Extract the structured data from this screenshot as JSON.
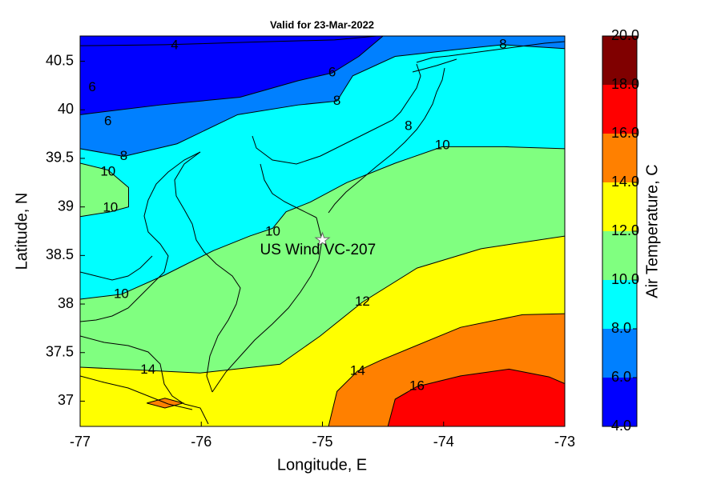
{
  "chart_data": {
    "type": "contour",
    "title": "Valid for 23-Mar-2022",
    "xlabel": "Longitude, E",
    "ylabel": "Latitude, N",
    "colorbar_label": "Air Temperature, C",
    "xlim": [
      -77,
      -73
    ],
    "ylim": [
      36.74,
      40.76
    ],
    "xticks": [
      -77,
      -76,
      -75,
      -74,
      -73
    ],
    "yticks": [
      37,
      37.5,
      38,
      38.5,
      39,
      39.5,
      40,
      40.5
    ],
    "cticks": [
      {
        "value": 4,
        "label": "4.0"
      },
      {
        "value": 6,
        "label": "6.0"
      },
      {
        "value": 8,
        "label": "8.0"
      },
      {
        "value": 10,
        "label": "10.0"
      },
      {
        "value": 12,
        "label": "12.0"
      },
      {
        "value": 14,
        "label": "14.0"
      },
      {
        "value": 16,
        "label": "16.0"
      },
      {
        "value": 18,
        "label": "18.0"
      },
      {
        "value": 20,
        "label": "20.0"
      }
    ],
    "colors": [
      "#0000ff",
      "#0080ff",
      "#00ffff",
      "#80ff80",
      "#ffff00",
      "#ff8000",
      "#ff0000",
      "#800000"
    ],
    "contours": [
      {
        "level": 4,
        "lon": [
          -77,
          -76.3,
          -75.5,
          -74.9,
          -74.55
        ],
        "lat": [
          40.66,
          40.67,
          40.7,
          40.72,
          40.76
        ]
      },
      {
        "level": 6,
        "lon": [
          -77,
          -76.34,
          -75.68,
          -75.2,
          -74.92,
          -74.7,
          -74.5
        ],
        "lat": [
          39.95,
          40.05,
          40.13,
          40.3,
          40.38,
          40.55,
          40.76
        ]
      },
      {
        "level": 8,
        "lon": [
          -77,
          -76.64,
          -76.2,
          -75.7,
          -75.2,
          -74.88,
          -74.75,
          -74.4,
          -73.9,
          -73.51,
          -73
        ],
        "lat": [
          39.6,
          39.52,
          39.65,
          39.95,
          40.05,
          40.09,
          40.35,
          40.55,
          40.62,
          40.67,
          40.63
        ]
      },
      {
        "level": 10,
        "lon": [
          -77,
          -76.77,
          -76.6,
          -76.6,
          -76.75,
          -77
        ],
        "lat": [
          39.45,
          39.38,
          39.2,
          39.0,
          38.95,
          38.9
        ]
      },
      {
        "level": 10,
        "lon": [
          -77,
          -76.66,
          -76.3,
          -75.9,
          -75.6,
          -75.41,
          -75.3,
          -75.1,
          -74.8,
          -74.4,
          -74.01,
          -73.5,
          -73
        ],
        "lat": [
          38.05,
          38.1,
          38.3,
          38.55,
          38.7,
          38.78,
          38.95,
          39.05,
          39.25,
          39.45,
          39.62,
          39.62,
          39.6
        ]
      },
      {
        "level": 12,
        "lon": [
          -77,
          -76.01,
          -75.35,
          -75.02,
          -74.67,
          -74.22,
          -73.69,
          -73
        ],
        "lat": [
          37.35,
          37.29,
          37.38,
          37.67,
          38.02,
          38.37,
          38.57,
          38.7
        ]
      },
      {
        "level": 14,
        "lon": [
          -74.95,
          -74.88,
          -74.71,
          -74.52,
          -73.86,
          -73.35,
          -73
        ],
        "lat": [
          36.74,
          37.1,
          37.31,
          37.42,
          37.76,
          37.89,
          37.9
        ]
      },
      {
        "level": 14,
        "lon": [
          -76.45,
          -76.3,
          -76.15,
          -76.3,
          -76.45
        ],
        "lat": [
          36.98,
          37.03,
          36.98,
          36.93,
          36.98
        ]
      },
      {
        "level": 16,
        "lon": [
          -74.46,
          -74.4,
          -74.22,
          -73.86,
          -73.46,
          -73.13,
          -73
        ],
        "lat": [
          36.74,
          37.02,
          37.15,
          37.26,
          37.33,
          37.25,
          37.18
        ]
      }
    ],
    "contour_labels": [
      {
        "level": 4,
        "lon": -76.22,
        "lat": 40.66
      },
      {
        "level": 6,
        "lon": -74.92,
        "lat": 40.38
      },
      {
        "level": 8,
        "lon": -74.88,
        "lat": 40.09
      },
      {
        "level": 6,
        "lon": -76.9,
        "lat": 40.23
      },
      {
        "level": 6,
        "lon": -76.77,
        "lat": 39.88
      },
      {
        "level": 8,
        "lon": -76.64,
        "lat": 39.52
      },
      {
        "level": 10,
        "lon": -76.77,
        "lat": 39.36
      },
      {
        "level": 10,
        "lon": -76.75,
        "lat": 38.99
      },
      {
        "level": 10,
        "lon": -75.41,
        "lat": 38.74
      },
      {
        "level": 10,
        "lon": -76.66,
        "lat": 38.1
      },
      {
        "level": 8,
        "lon": -74.29,
        "lat": 39.83
      },
      {
        "level": 10,
        "lon": -74.01,
        "lat": 39.63
      },
      {
        "level": 8,
        "lon": -73.51,
        "lat": 40.67
      },
      {
        "level": 12,
        "lon": -74.67,
        "lat": 38.02
      },
      {
        "level": 14,
        "lon": -74.71,
        "lat": 37.31
      },
      {
        "level": 16,
        "lon": -74.22,
        "lat": 37.15
      },
      {
        "level": 14,
        "lon": -76.44,
        "lat": 37.32
      }
    ],
    "station": {
      "name": "US Wind VC-207",
      "lon": -75.0,
      "lat": 38.66
    }
  }
}
